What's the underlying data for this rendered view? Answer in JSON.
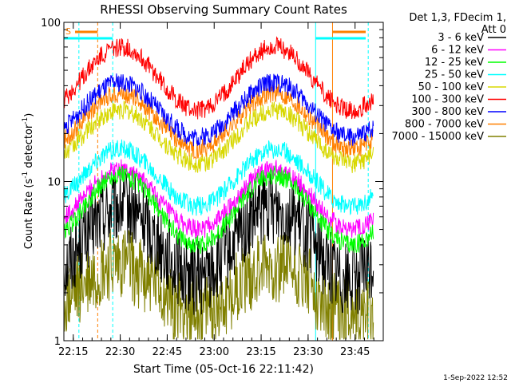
{
  "chart_data": {
    "type": "line",
    "title": "RHESSI Observing Summary Count Rates",
    "xlabel": "Start Time (05-Oct-16 22:11:42)",
    "ylabel_main": "Count Rate (s",
    "ylabel_sup": "-1",
    "ylabel_rest": " detector",
    "ylabel_end": ")",
    "yscale": "log",
    "ylim": [
      1,
      100
    ],
    "y_ticks": [
      {
        "value": 1,
        "label": "1"
      },
      {
        "value": 10,
        "label": "10"
      },
      {
        "value": 100,
        "label": "100"
      }
    ],
    "xlim_minutes": [
      22.2,
      23.9
    ],
    "x_ticks": [
      {
        "value": 22.25,
        "label": "22:15"
      },
      {
        "value": 22.5,
        "label": "22:30"
      },
      {
        "value": 22.75,
        "label": "22:45"
      },
      {
        "value": 23.0,
        "label": "23:00"
      },
      {
        "value": 23.25,
        "label": "23:15"
      },
      {
        "value": 23.5,
        "label": "23:30"
      },
      {
        "value": 23.75,
        "label": "23:45"
      }
    ],
    "legend_header": [
      "Det 1,3, FDecim 1,",
      "Att 0"
    ],
    "legend_position": "right",
    "series": [
      {
        "name": "3 - 6 keV",
        "color": "#000000",
        "peak": 7,
        "base": 2.5
      },
      {
        "name": "6 - 12 keV",
        "color": "#ff00ff",
        "peak": 12,
        "base": 5
      },
      {
        "name": "12 - 25 keV",
        "color": "#00ff00",
        "peak": 11,
        "base": 4
      },
      {
        "name": "25 - 50 keV",
        "color": "#00ffff",
        "peak": 16,
        "base": 7
      },
      {
        "name": "50 - 100 keV",
        "color": "#d8d800",
        "peak": 28,
        "base": 13
      },
      {
        "name": "100 - 300 keV",
        "color": "#ff0000",
        "peak": 70,
        "base": 28
      },
      {
        "name": "300 - 800 keV",
        "color": "#0000ff",
        "peak": 42,
        "base": 19
      },
      {
        "name": "800 - 7000 keV",
        "color": "#ff8000",
        "peak": 36,
        "base": 16
      },
      {
        "name": "7000 - 15000 keV",
        "color": "#808000",
        "peak": 3,
        "base": 1.5
      }
    ],
    "saa_flag": "S",
    "timestamp": "1-Sep-2022 12:52"
  }
}
